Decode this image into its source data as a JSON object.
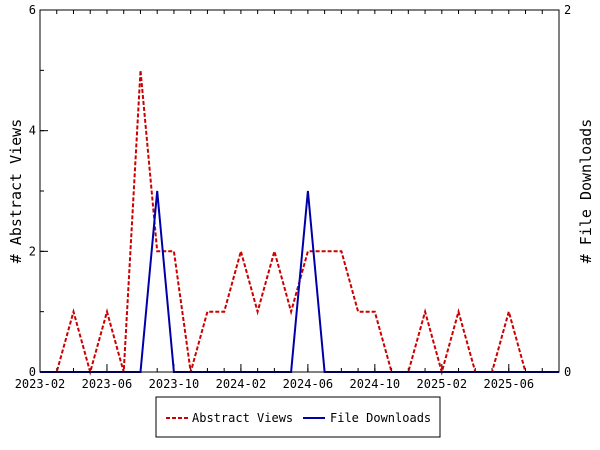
{
  "chart_data": {
    "type": "line",
    "x": [
      "2023-02",
      "2023-03",
      "2023-04",
      "2023-05",
      "2023-06",
      "2023-07",
      "2023-08",
      "2023-09",
      "2023-10",
      "2023-11",
      "2023-12",
      "2024-01",
      "2024-02",
      "2024-03",
      "2024-04",
      "2024-05",
      "2024-06",
      "2024-07",
      "2024-08",
      "2024-09",
      "2024-10",
      "2024-11",
      "2024-12",
      "2025-01",
      "2025-02",
      "2025-03",
      "2025-04",
      "2025-05",
      "2025-06",
      "2025-07",
      "2025-08",
      "2025-09"
    ],
    "x_ticks": [
      "2023-02",
      "2023-06",
      "2023-10",
      "2024-02",
      "2024-06",
      "2024-10",
      "2025-02",
      "2025-06"
    ],
    "series": [
      {
        "name": "Abstract Views",
        "axis": "left",
        "color": "#cc0000",
        "dash": "dashed",
        "values": [
          0,
          0,
          1,
          0,
          1,
          0,
          5,
          2,
          2,
          0,
          1,
          1,
          2,
          1,
          2,
          1,
          2,
          2,
          2,
          1,
          1,
          0,
          0,
          1,
          0,
          1,
          0,
          0,
          1,
          0,
          0,
          0
        ]
      },
      {
        "name": "File Downloads",
        "axis": "right",
        "color": "#0000aa",
        "dash": "solid",
        "values": [
          0,
          0,
          0,
          0,
          0,
          0,
          0,
          1,
          0,
          0,
          0,
          0,
          0,
          0,
          0,
          0,
          1,
          0,
          0,
          0,
          0,
          0,
          0,
          0,
          0,
          0,
          0,
          0,
          0,
          0,
          0,
          0
        ]
      }
    ],
    "ylabel": "# Abstract Views",
    "y2label": "# File Downloads",
    "ylim": [
      0,
      6
    ],
    "yticks": [
      0,
      2,
      4,
      6
    ],
    "y2lim": [
      0,
      2
    ],
    "y2ticks": [
      0,
      2
    ],
    "grid": false,
    "legend_position": "bottom"
  }
}
